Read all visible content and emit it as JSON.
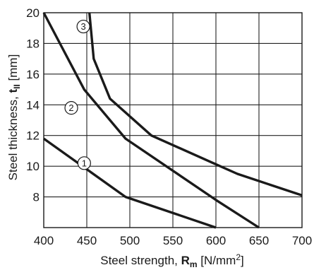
{
  "chart_data": {
    "type": "line",
    "xlabel_prefix": "Steel strength, ",
    "xlabel_symbol": "R",
    "xlabel_sub": "m",
    "xlabel_unit_pre": " [N/mm",
    "xlabel_unit_sup": "2",
    "xlabel_unit_post": "]",
    "ylabel_prefix": "Steel thickness, ",
    "ylabel_symbol": "t",
    "ylabel_sub": "II",
    "ylabel_unit": " [mm]",
    "xlim": [
      400,
      700
    ],
    "ylim": [
      6,
      20
    ],
    "xticks": [
      400,
      450,
      500,
      550,
      600,
      650,
      700
    ],
    "yticks": [
      8,
      10,
      12,
      14,
      16,
      18,
      20
    ],
    "grid": true,
    "series": [
      {
        "marker": "1",
        "label_at": [
          447,
          10.2
        ],
        "points": [
          [
            400,
            11.8
          ],
          [
            495,
            8.0
          ],
          [
            600,
            6.0
          ]
        ]
      },
      {
        "marker": "2",
        "label_at": [
          432,
          13.8
        ],
        "points": [
          [
            400,
            20.0
          ],
          [
            447,
            15.0
          ],
          [
            495,
            11.8
          ],
          [
            600,
            7.8
          ],
          [
            650,
            6.0
          ]
        ]
      },
      {
        "marker": "3",
        "label_at": [
          446,
          19.1
        ],
        "points": [
          [
            453,
            20.0
          ],
          [
            458,
            17.0
          ],
          [
            477,
            14.4
          ],
          [
            525,
            12.0
          ],
          [
            597,
            10.2
          ],
          [
            625,
            9.5
          ],
          [
            700,
            8.1
          ]
        ]
      }
    ]
  }
}
